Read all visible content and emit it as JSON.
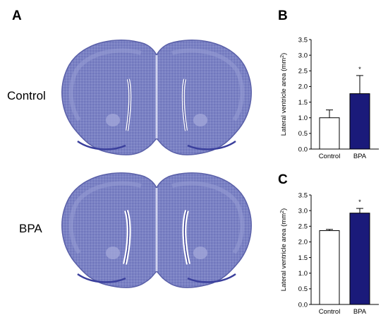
{
  "panels": {
    "a": "A",
    "b": "B",
    "c": "C"
  },
  "rows": {
    "control": "Control",
    "bpa": "BPA"
  },
  "colors": {
    "tissue": "#7e86c6",
    "tissue_dark": "#3a3f9c",
    "bar_control": "#ffffff",
    "bar_bpa": "#1a1a7a"
  },
  "chart_data": [
    {
      "type": "bar",
      "panel": "B",
      "categories": [
        "Control",
        "BPA"
      ],
      "values": [
        1.0,
        1.77
      ],
      "errors": [
        0.25,
        0.58
      ],
      "significance": [
        "",
        "*"
      ],
      "ylabel_main": "Lateral ventricle area (mm",
      "ylabel_sup": "2",
      "ylabel_end": ")",
      "ylim": [
        0,
        3.5
      ],
      "yticks": [
        "0.0",
        "0.5",
        "1.0",
        "1.5",
        "2.0",
        "2.5",
        "3.0",
        "3.5"
      ]
    },
    {
      "type": "bar",
      "panel": "C",
      "categories": [
        "Control",
        "BPA"
      ],
      "values": [
        2.36,
        2.92
      ],
      "errors": [
        0.04,
        0.15
      ],
      "significance": [
        "",
        "*"
      ],
      "ylabel_main": "Lateral ventricle area (mm",
      "ylabel_sup": "2",
      "ylabel_end": ")",
      "ylim": [
        0,
        3.5
      ],
      "yticks": [
        "0.0",
        "0.5",
        "1.0",
        "1.5",
        "2.0",
        "2.5",
        "3.0",
        "3.5"
      ]
    }
  ]
}
